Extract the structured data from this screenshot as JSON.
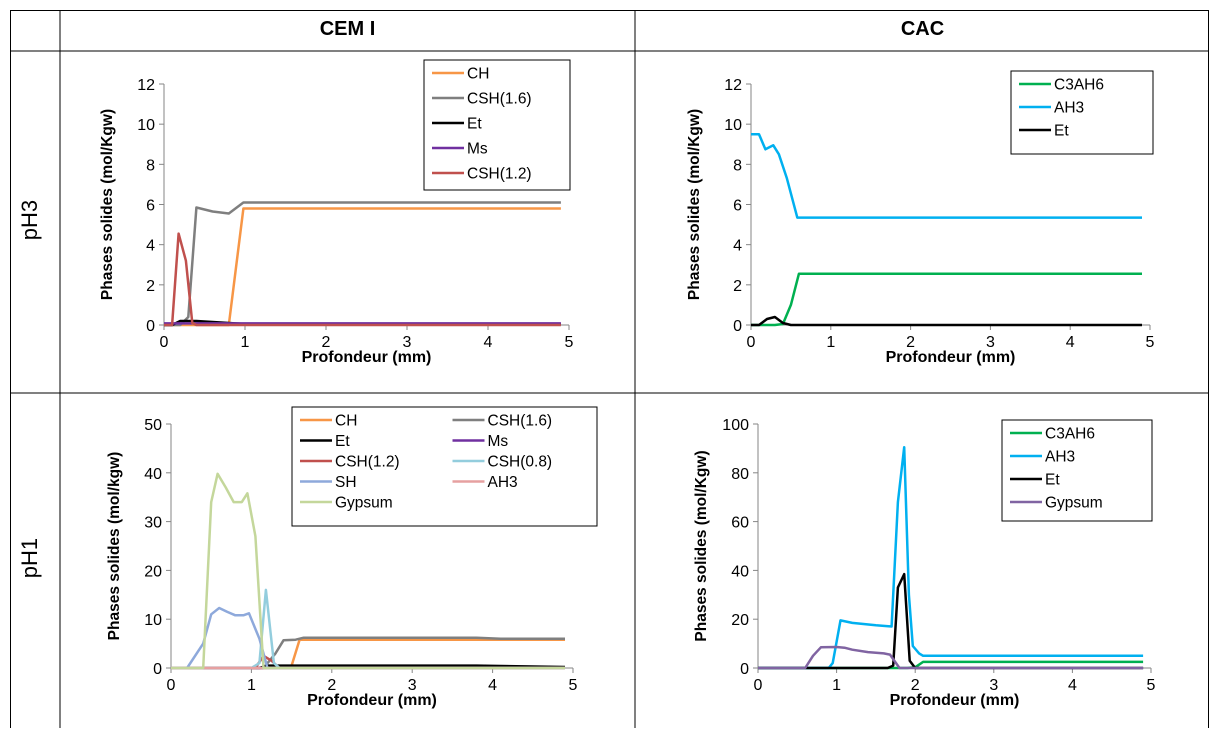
{
  "table": {
    "col_headers": [
      "CEM I",
      "CAC"
    ],
    "row_labels": [
      "pH3",
      "pH1"
    ]
  },
  "chart_data": [
    {
      "id": "cem-ph3",
      "type": "line",
      "xlabel": "Profondeur (mm)",
      "ylabel": "Phases solides (mol/Kgw)",
      "xlim": [
        0,
        5
      ],
      "ylim": [
        0,
        12
      ],
      "xticks": [
        0,
        1,
        2,
        3,
        4,
        5
      ],
      "yticks": [
        0,
        2,
        4,
        6,
        8,
        10,
        12
      ],
      "legend": "top-right",
      "legend_columns": 1,
      "series": [
        {
          "name": "CH",
          "color": "#F79646",
          "points": [
            [
              0,
              0
            ],
            [
              0.3,
              0
            ],
            [
              0.6,
              0
            ],
            [
              0.8,
              0
            ],
            [
              0.98,
              5.8
            ],
            [
              2,
              5.8
            ],
            [
              4.9,
              5.8
            ]
          ]
        },
        {
          "name": "CSH(1.6)",
          "color": "#7F7F7F",
          "points": [
            [
              0,
              0
            ],
            [
              0.2,
              0
            ],
            [
              0.3,
              0.4
            ],
            [
              0.4,
              5.85
            ],
            [
              0.6,
              5.65
            ],
            [
              0.8,
              5.55
            ],
            [
              0.98,
              6.1
            ],
            [
              4.9,
              6.1
            ]
          ]
        },
        {
          "name": "Et",
          "color": "#000000",
          "points": [
            [
              0,
              0
            ],
            [
              0.1,
              0
            ],
            [
              0.2,
              0.2
            ],
            [
              0.4,
              0.2
            ],
            [
              0.6,
              0.15
            ],
            [
              0.8,
              0.1
            ],
            [
              1.0,
              0.05
            ],
            [
              4.9,
              0.05
            ]
          ]
        },
        {
          "name": "Ms",
          "color": "#7030A0",
          "points": [
            [
              0,
              0.08
            ],
            [
              4.9,
              0.08
            ]
          ]
        },
        {
          "name": "CSH(1.2)",
          "color": "#C0504D",
          "points": [
            [
              0,
              0
            ],
            [
              0.1,
              0
            ],
            [
              0.18,
              4.55
            ],
            [
              0.27,
              3.2
            ],
            [
              0.35,
              0.1
            ],
            [
              0.4,
              0
            ],
            [
              4.9,
              0
            ]
          ]
        }
      ]
    },
    {
      "id": "cac-ph3",
      "type": "line",
      "xlabel": "Profondeur (mm)",
      "ylabel": "Phases solides (mol/Kgw)",
      "xlim": [
        0,
        5
      ],
      "ylim": [
        0,
        12
      ],
      "xticks": [
        0,
        1,
        2,
        3,
        4,
        5
      ],
      "yticks": [
        0,
        2,
        4,
        6,
        8,
        10,
        12
      ],
      "legend": "top-right",
      "legend_columns": 1,
      "series": [
        {
          "name": "C3AH6",
          "color": "#00B050",
          "points": [
            [
              0,
              0
            ],
            [
              0.3,
              0
            ],
            [
              0.4,
              0.05
            ],
            [
              0.5,
              1.0
            ],
            [
              0.6,
              2.55
            ],
            [
              4.9,
              2.55
            ]
          ]
        },
        {
          "name": "AH3",
          "color": "#00B0F0",
          "points": [
            [
              0,
              9.5
            ],
            [
              0.1,
              9.5
            ],
            [
              0.18,
              8.75
            ],
            [
              0.28,
              8.95
            ],
            [
              0.35,
              8.5
            ],
            [
              0.45,
              7.3
            ],
            [
              0.58,
              5.35
            ],
            [
              4.9,
              5.35
            ]
          ]
        },
        {
          "name": "Et",
          "color": "#000000",
          "points": [
            [
              0,
              0
            ],
            [
              0.1,
              0
            ],
            [
              0.2,
              0.3
            ],
            [
              0.3,
              0.4
            ],
            [
              0.4,
              0.1
            ],
            [
              0.5,
              0
            ],
            [
              4.9,
              0
            ]
          ]
        }
      ]
    },
    {
      "id": "cem-ph1",
      "type": "line",
      "xlabel": "Profondeur (mm)",
      "ylabel": "Phases solides (mol/kgw)",
      "xlim": [
        0,
        5
      ],
      "ylim": [
        0,
        50
      ],
      "xticks": [
        0,
        1,
        2,
        3,
        4,
        5
      ],
      "yticks": [
        0,
        10,
        20,
        30,
        40,
        50
      ],
      "legend": "top-right",
      "legend_columns": 2,
      "series": [
        {
          "name": "CH",
          "color": "#F79646",
          "points": [
            [
              0,
              0
            ],
            [
              1.3,
              0
            ],
            [
              1.5,
              0.5
            ],
            [
              1.6,
              5.8
            ],
            [
              3.8,
              5.8
            ],
            [
              4.9,
              5.8
            ]
          ]
        },
        {
          "name": "CSH(1.6)",
          "color": "#7F7F7F",
          "points": [
            [
              0,
              0
            ],
            [
              1.15,
              0
            ],
            [
              1.3,
              3
            ],
            [
              1.4,
              5.7
            ],
            [
              1.55,
              5.8
            ],
            [
              1.65,
              6.2
            ],
            [
              3.8,
              6.2
            ],
            [
              4.1,
              6.0
            ],
            [
              4.9,
              6.0
            ]
          ]
        },
        {
          "name": "Et",
          "color": "#000000",
          "points": [
            [
              0,
              0
            ],
            [
              1.1,
              0
            ],
            [
              1.2,
              0.5
            ],
            [
              1.4,
              0.5
            ],
            [
              3.8,
              0.5
            ],
            [
              4.9,
              0.2
            ]
          ]
        },
        {
          "name": "Ms",
          "color": "#7030A0",
          "points": [
            [
              0,
              0
            ],
            [
              4.9,
              0
            ]
          ]
        },
        {
          "name": "CSH(1.2)",
          "color": "#C0504D",
          "points": [
            [
              0,
              0
            ],
            [
              1.05,
              0
            ],
            [
              1.15,
              2.5
            ],
            [
              1.25,
              1.5
            ],
            [
              1.35,
              0
            ],
            [
              4.9,
              0
            ]
          ]
        },
        {
          "name": "CSH(0.8)",
          "color": "#93CDDD",
          "points": [
            [
              0,
              0
            ],
            [
              1.0,
              0
            ],
            [
              1.1,
              1
            ],
            [
              1.18,
              16
            ],
            [
              1.28,
              1
            ],
            [
              1.35,
              0
            ],
            [
              4.9,
              0
            ]
          ]
        },
        {
          "name": "SH",
          "color": "#8EA9DB",
          "points": [
            [
              0,
              0
            ],
            [
              0.2,
              0
            ],
            [
              0.4,
              5
            ],
            [
              0.5,
              11
            ],
            [
              0.6,
              12.3
            ],
            [
              0.7,
              11.5
            ],
            [
              0.8,
              10.8
            ],
            [
              0.9,
              10.8
            ],
            [
              0.97,
              11.2
            ],
            [
              1.05,
              8
            ],
            [
              1.1,
              6
            ],
            [
              1.2,
              0
            ],
            [
              4.9,
              0
            ]
          ]
        },
        {
          "name": "AH3",
          "color": "#E6A0A0",
          "points": [
            [
              0,
              0
            ],
            [
              4.9,
              0
            ]
          ]
        },
        {
          "name": "Gypsum",
          "color": "#C4D79B",
          "points": [
            [
              0,
              0
            ],
            [
              0.4,
              0
            ],
            [
              0.5,
              34
            ],
            [
              0.58,
              39.8
            ],
            [
              0.68,
              37
            ],
            [
              0.78,
              34
            ],
            [
              0.88,
              34
            ],
            [
              0.95,
              35.8
            ],
            [
              1.05,
              27
            ],
            [
              1.15,
              0
            ],
            [
              4.9,
              0
            ]
          ]
        }
      ]
    },
    {
      "id": "cac-ph1",
      "type": "line",
      "xlabel": "Profondeur (mm)",
      "ylabel": "Phases solides (mol/Kgw)",
      "xlim": [
        0,
        5
      ],
      "ylim": [
        0,
        100
      ],
      "xticks": [
        0,
        1,
        2,
        3,
        4,
        5
      ],
      "yticks": [
        0,
        20,
        40,
        60,
        80,
        100
      ],
      "legend": "top-right",
      "legend_columns": 1,
      "series": [
        {
          "name": "C3AH6",
          "color": "#00B050",
          "points": [
            [
              0,
              0
            ],
            [
              1.9,
              0
            ],
            [
              2.0,
              0.3
            ],
            [
              2.1,
              2.5
            ],
            [
              4.9,
              2.5
            ]
          ]
        },
        {
          "name": "AH3",
          "color": "#00B0F0",
          "points": [
            [
              0,
              0
            ],
            [
              0.9,
              0
            ],
            [
              0.95,
              2
            ],
            [
              1.05,
              19.5
            ],
            [
              1.2,
              18.5
            ],
            [
              1.5,
              17.5
            ],
            [
              1.7,
              17
            ],
            [
              1.78,
              68
            ],
            [
              1.86,
              90.5
            ],
            [
              1.92,
              30
            ],
            [
              1.97,
              9
            ],
            [
              2.05,
              6
            ],
            [
              2.1,
              5
            ],
            [
              4.9,
              5
            ]
          ]
        },
        {
          "name": "Et",
          "color": "#000000",
          "points": [
            [
              0,
              0
            ],
            [
              1.65,
              0
            ],
            [
              1.72,
              1
            ],
            [
              1.78,
              33
            ],
            [
              1.86,
              38.5
            ],
            [
              1.93,
              3
            ],
            [
              2.0,
              0
            ],
            [
              4.9,
              0
            ]
          ]
        },
        {
          "name": "Gypsum",
          "color": "#8064A2",
          "points": [
            [
              0,
              0
            ],
            [
              0.6,
              0
            ],
            [
              0.7,
              5
            ],
            [
              0.8,
              8.5
            ],
            [
              1.0,
              8.6
            ],
            [
              1.1,
              8.3
            ],
            [
              1.2,
              7.5
            ],
            [
              1.4,
              6.5
            ],
            [
              1.6,
              6
            ],
            [
              1.68,
              5.5
            ],
            [
              1.8,
              0
            ],
            [
              4.9,
              0
            ]
          ]
        }
      ]
    }
  ]
}
